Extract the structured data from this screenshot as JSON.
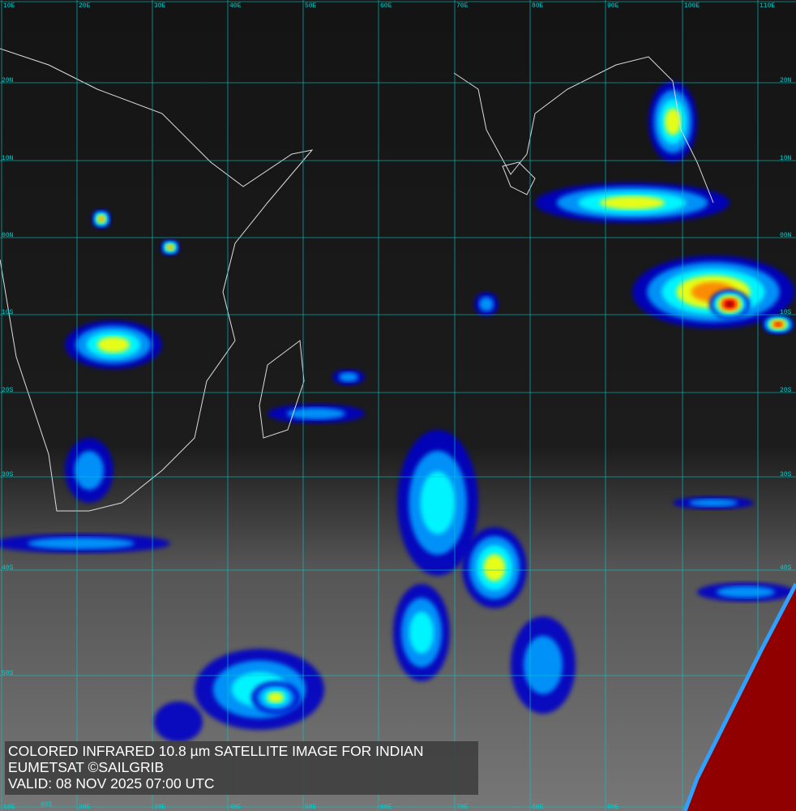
{
  "map": {
    "projection": "mercator",
    "longitude_labels": [
      "10E",
      "20E",
      "30E",
      "40E",
      "50E",
      "60E",
      "70E",
      "80E",
      "90E",
      "100E",
      "110E"
    ],
    "latitude_labels": [
      "20N",
      "10N",
      "00N",
      "10S",
      "20S",
      "30S",
      "40S",
      "50S",
      "60S"
    ],
    "grid_color": "#00c8c8",
    "coastline_color": "#ffffff",
    "colorscale": [
      "#0000c8",
      "#00a0ff",
      "#00ffff",
      "#ffff00",
      "#ff8000",
      "#ff0000",
      "#800000"
    ]
  },
  "caption": {
    "line1": "COLORED INFRARED 10.8 µm SATELLITE IMAGE FOR INDIAN",
    "line2": "EUMETSAT ©SAILGRIB",
    "line3": "VALID:  08 NOV 2025 07:00 UTC"
  }
}
